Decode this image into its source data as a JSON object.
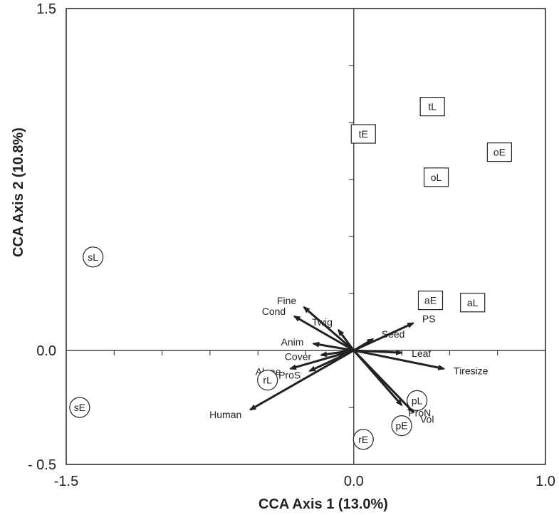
{
  "chart_data": {
    "type": "scatter",
    "title": "",
    "xlabel": "CCA Axis 1 (13.0%)",
    "ylabel": "CCA Axis 2 (10.8%)",
    "xlim": [
      -1.5,
      1.0
    ],
    "ylim": [
      -0.5,
      1.5
    ],
    "x_tick_labels": [
      {
        "value": -1.5,
        "label": "-1.5"
      },
      {
        "value": 0.0,
        "label": "0.0"
      },
      {
        "value": 1.0,
        "label": "1.0"
      }
    ],
    "y_tick_labels": [
      {
        "value": -0.5,
        "label": "- 0.5"
      },
      {
        "value": 0.0,
        "label": "0.0"
      },
      {
        "value": 1.5,
        "label": "1.5"
      }
    ],
    "minor_tick_step": 0.25,
    "grid": false,
    "sites": [
      {
        "label": "tL",
        "x": 0.41,
        "y": 1.07,
        "shape": "square"
      },
      {
        "label": "tE",
        "x": 0.05,
        "y": 0.95,
        "shape": "square"
      },
      {
        "label": "oE",
        "x": 0.76,
        "y": 0.87,
        "shape": "square"
      },
      {
        "label": "oL",
        "x": 0.43,
        "y": 0.76,
        "shape": "square"
      },
      {
        "label": "aE",
        "x": 0.4,
        "y": 0.22,
        "shape": "square"
      },
      {
        "label": "aL",
        "x": 0.62,
        "y": 0.21,
        "shape": "square"
      },
      {
        "label": "sL",
        "x": -1.36,
        "y": 0.41,
        "shape": "circle"
      },
      {
        "label": "sE",
        "x": -1.43,
        "y": -0.25,
        "shape": "circle"
      },
      {
        "label": "rL",
        "x": -0.45,
        "y": -0.13,
        "shape": "circle"
      },
      {
        "label": "pL",
        "x": 0.33,
        "y": -0.22,
        "shape": "circle"
      },
      {
        "label": "pE",
        "x": 0.25,
        "y": -0.33,
        "shape": "circle"
      },
      {
        "label": "rE",
        "x": 0.05,
        "y": -0.39,
        "shape": "circle"
      }
    ],
    "vectors": [
      {
        "label": "Fine",
        "x": -0.26,
        "y": 0.19
      },
      {
        "label": "Cond",
        "x": -0.31,
        "y": 0.15
      },
      {
        "label": "Twig",
        "x": -0.08,
        "y": 0.09
      },
      {
        "label": "PS",
        "x": 0.31,
        "y": 0.12
      },
      {
        "label": "Anim",
        "x": -0.21,
        "y": 0.03
      },
      {
        "label": "Seed",
        "x": 0.1,
        "y": 0.05
      },
      {
        "label": "Cover",
        "x": -0.17,
        "y": -0.02
      },
      {
        "label": "Leaf",
        "x": 0.25,
        "y": -0.01
      },
      {
        "label": "Algae",
        "x": -0.33,
        "y": -0.08
      },
      {
        "label": "Tiresize",
        "x": 0.47,
        "y": -0.08
      },
      {
        "label": "ProS",
        "x": -0.23,
        "y": -0.09
      },
      {
        "label": "Human",
        "x": -0.54,
        "y": -0.26
      },
      {
        "label": "ProN",
        "x": 0.25,
        "y": -0.24
      },
      {
        "label": "Vol",
        "x": 0.31,
        "y": -0.27
      }
    ]
  }
}
